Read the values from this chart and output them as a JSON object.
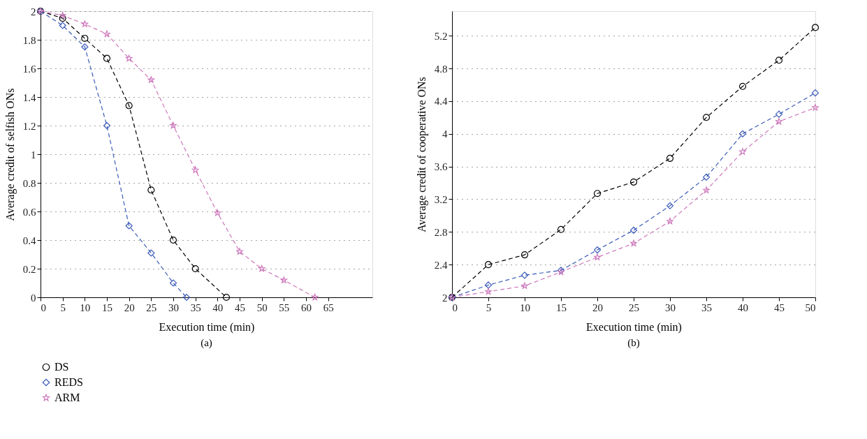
{
  "chart_data": [
    {
      "type": "line",
      "xlabel": "Execution time (min)",
      "ylabel": "Average credit of selfish ONs",
      "xlim": [
        0,
        75
      ],
      "xticks": [
        0,
        5,
        10,
        15,
        20,
        25,
        30,
        35,
        40,
        45,
        50,
        55,
        60,
        65
      ],
      "ylim": [
        0,
        2
      ],
      "yticks": [
        0,
        0.2,
        0.4,
        0.6,
        0.8,
        1,
        1.2,
        1.4,
        1.6,
        1.8,
        2
      ],
      "grid": "y",
      "legend": "bottom left",
      "line_style": "dashed",
      "annotations": [
        "(a)"
      ],
      "series": [
        {
          "name": "DS",
          "color": "#000000",
          "marker": "circle",
          "x": [
            0,
            5,
            10,
            15,
            20,
            25,
            30,
            35,
            42
          ],
          "values": [
            2,
            1.95,
            1.81,
            1.67,
            1.34,
            0.75,
            0.4,
            0.2,
            0
          ]
        },
        {
          "name": "REDS",
          "color": "#3a5bb8",
          "marker": "diamond",
          "x": [
            0,
            5,
            10,
            15,
            20,
            25,
            30,
            33
          ],
          "values": [
            2,
            1.9,
            1.75,
            1.2,
            0.5,
            0.31,
            0.1,
            0
          ]
        },
        {
          "name": "ARM",
          "color": "#cc77bb",
          "marker": "star",
          "x": [
            0,
            5,
            10,
            15,
            20,
            25,
            30,
            35,
            40,
            45,
            50,
            55,
            62
          ],
          "values": [
            2,
            1.97,
            1.91,
            1.84,
            1.67,
            1.52,
            1.2,
            0.89,
            0.59,
            0.32,
            0.2,
            0.12,
            0
          ]
        }
      ]
    },
    {
      "type": "line",
      "xlabel": "Execution time (min)",
      "ylabel": "Average credit of cooperative ONs",
      "xlim": [
        0,
        50
      ],
      "xticks": [
        0,
        5,
        10,
        15,
        20,
        25,
        30,
        35,
        40,
        45,
        50
      ],
      "ylim": [
        2,
        5.5
      ],
      "yticks": [
        2,
        2.4,
        2.8,
        3.2,
        3.6,
        4,
        4.4,
        4.8,
        5.2
      ],
      "grid": "y",
      "legend": "bottom left",
      "line_style": "dashed",
      "annotations": [
        "(b)"
      ],
      "series": [
        {
          "name": "DS",
          "color": "#000000",
          "marker": "circle",
          "x": [
            0,
            5,
            10,
            15,
            20,
            25,
            30,
            35,
            40,
            45,
            50
          ],
          "values": [
            2,
            2.4,
            2.52,
            2.83,
            3.27,
            3.41,
            3.7,
            4.2,
            4.58,
            4.9,
            5.3
          ]
        },
        {
          "name": "REDS",
          "color": "#3a5bb8",
          "marker": "diamond",
          "x": [
            0,
            5,
            10,
            15,
            20,
            25,
            30,
            35,
            40,
            45,
            50
          ],
          "values": [
            2,
            2.15,
            2.27,
            2.33,
            2.58,
            2.82,
            3.12,
            3.47,
            4.0,
            4.24,
            4.5
          ]
        },
        {
          "name": "ARM",
          "color": "#cc77bb",
          "marker": "star",
          "x": [
            0,
            5,
            10,
            15,
            20,
            25,
            30,
            35,
            40,
            45,
            50
          ],
          "values": [
            2,
            2.07,
            2.14,
            2.31,
            2.49,
            2.66,
            2.93,
            3.31,
            3.78,
            4.15,
            4.32
          ]
        }
      ]
    }
  ]
}
